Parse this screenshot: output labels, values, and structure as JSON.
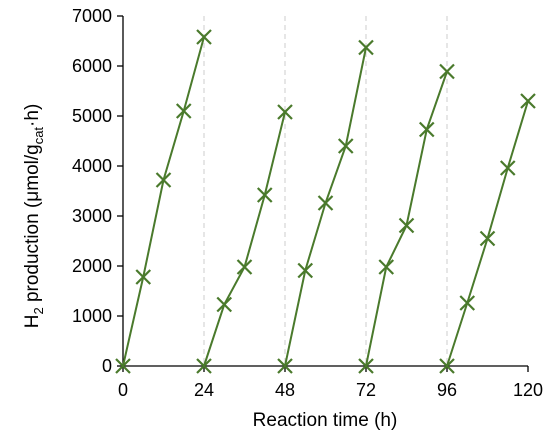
{
  "chart_data": {
    "type": "scatter",
    "xlabel": "Reaction time (h)",
    "ylabel": {
      "parts": [
        {
          "text": "H",
          "style": "normal"
        },
        {
          "text": "2",
          "style": "sub"
        },
        {
          "text": " production (μmol/g",
          "style": "normal"
        },
        {
          "text": "cat",
          "style": "sub"
        },
        {
          "text": "·h)",
          "style": "normal"
        }
      ]
    },
    "xlim": [
      0,
      120
    ],
    "ylim": [
      0,
      7000
    ],
    "xticks": [
      0,
      24,
      48,
      72,
      96,
      120
    ],
    "yticks": [
      0,
      1000,
      2000,
      3000,
      4000,
      5000,
      6000,
      7000
    ],
    "cycle_separators": [
      24,
      48,
      72,
      96
    ],
    "color": "#4a7a2c",
    "separator_color": "#cccccc",
    "marker": "x",
    "series": [
      {
        "x": [
          0,
          6,
          12,
          18,
          24
        ],
        "y": [
          0,
          1780,
          3720,
          5100,
          6580
        ]
      },
      {
        "x": [
          24,
          30,
          36,
          42,
          48
        ],
        "y": [
          0,
          1230,
          1980,
          3420,
          5080
        ]
      },
      {
        "x": [
          48,
          54,
          60,
          66,
          72
        ],
        "y": [
          0,
          1910,
          3260,
          4400,
          6370
        ]
      },
      {
        "x": [
          72,
          78,
          84,
          90,
          96
        ],
        "y": [
          0,
          1980,
          2810,
          4730,
          5890
        ]
      },
      {
        "x": [
          96,
          102,
          108,
          114,
          120
        ],
        "y": [
          0,
          1260,
          2550,
          3960,
          5300
        ]
      }
    ]
  }
}
